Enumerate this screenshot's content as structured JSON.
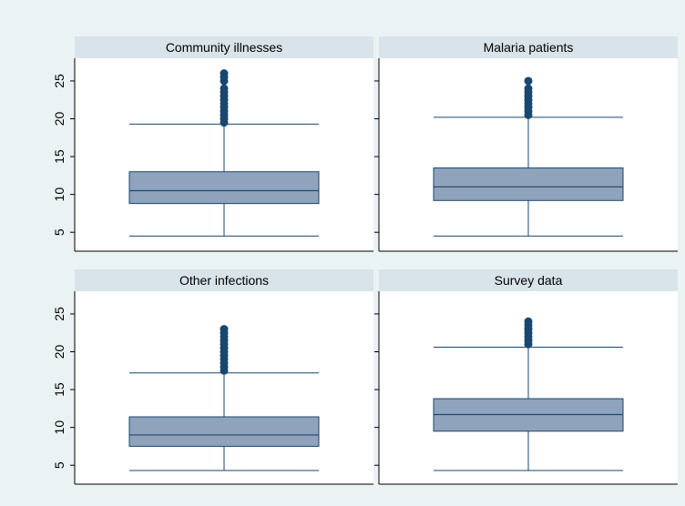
{
  "chart_data": [
    {
      "type": "box",
      "title": "Community illnesses",
      "ylim": [
        2.5,
        28
      ],
      "yticks": [
        5,
        10,
        15,
        20,
        25
      ],
      "show_tick_labels": true,
      "whisker_low": 4.5,
      "q1": 8.8,
      "median": 10.5,
      "q3": 13.0,
      "whisker_high": 19.3,
      "outliers": [
        19.5,
        20,
        20.5,
        21,
        21.5,
        22,
        22.5,
        23,
        23.5,
        24,
        25,
        25.5,
        26
      ],
      "color": "#8fa3bc",
      "line_color": "#1a476f"
    },
    {
      "type": "box",
      "title": "Malaria patients",
      "ylim": [
        2.5,
        28
      ],
      "yticks": [
        5,
        10,
        15,
        20,
        25
      ],
      "show_tick_labels": false,
      "whisker_low": 4.5,
      "q1": 9.2,
      "median": 11.0,
      "q3": 13.5,
      "whisker_high": 20.2,
      "outliers": [
        20.5,
        21,
        21.5,
        22,
        22.5,
        23,
        23.5,
        24,
        25
      ],
      "color": "#8fa3bc",
      "line_color": "#1a476f"
    },
    {
      "type": "box",
      "title": "Other infections",
      "ylim": [
        2.5,
        28
      ],
      "yticks": [
        5,
        10,
        15,
        20,
        25
      ],
      "show_tick_labels": true,
      "whisker_low": 4.3,
      "q1": 7.5,
      "median": 9.0,
      "q3": 11.4,
      "whisker_high": 17.2,
      "outliers": [
        17.5,
        18,
        18.5,
        19,
        19.5,
        20,
        20.5,
        21,
        21.5,
        22,
        22.5,
        23
      ],
      "color": "#8fa3bc",
      "line_color": "#1a476f"
    },
    {
      "type": "box",
      "title": "Survey data",
      "ylim": [
        2.5,
        28
      ],
      "yticks": [
        5,
        10,
        15,
        20,
        25
      ],
      "show_tick_labels": false,
      "whisker_low": 4.3,
      "q1": 9.5,
      "median": 11.7,
      "q3": 13.8,
      "whisker_high": 20.6,
      "outliers": [
        21,
        21.5,
        22,
        22.5,
        23,
        23.5,
        24
      ],
      "color": "#8fa3bc",
      "line_color": "#1a476f"
    }
  ]
}
